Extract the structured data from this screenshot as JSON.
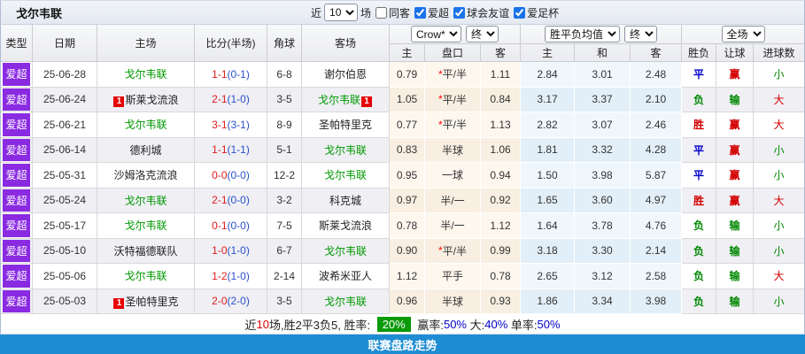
{
  "title": "戈尔韦联",
  "topbar": {
    "near_label": "近",
    "count": "10",
    "matches_label": "场",
    "filters": [
      {
        "label": "同客",
        "checked": false
      },
      {
        "label": "爱超",
        "checked": true
      },
      {
        "label": "球会友谊",
        "checked": true
      },
      {
        "label": "爱足杯",
        "checked": true
      }
    ]
  },
  "table": {
    "static_headers": [
      "类型",
      "日期",
      "主场",
      "比分(半场)",
      "角球",
      "客场"
    ],
    "groups": {
      "odds": {
        "select_company": "Crow*",
        "select_time": "终",
        "subs": [
          "主",
          "盘口",
          "客"
        ]
      },
      "avg": {
        "select_name": "胜平负均值",
        "select_time": "终",
        "subs": [
          "主",
          "和",
          "客"
        ]
      },
      "result": {
        "select_scope": "全场",
        "subs": [
          "胜负",
          "让球",
          "进球数"
        ]
      }
    },
    "rows": [
      {
        "league": "爱超",
        "date": "25-06-28",
        "home": {
          "name": "戈尔韦联",
          "self": true
        },
        "ft": "1-1",
        "ht": "(0-1)",
        "corners": "6-8",
        "away": {
          "name": "谢尔伯恩",
          "self": false
        },
        "odds_home": "0.79",
        "star": true,
        "line": "平/半",
        "odds_away": "1.11",
        "avg_home": "2.84",
        "avg_draw": "3.01",
        "avg_away": "2.48",
        "outcome": {
          "text": "平",
          "color": "blue"
        },
        "handicap": {
          "text": "赢",
          "color": "red"
        },
        "goals": {
          "text": "小",
          "color": "green"
        }
      },
      {
        "league": "爱超",
        "date": "25-06-24",
        "home": {
          "name": "斯莱戈流浪",
          "self": false,
          "badge": "1",
          "badge_side": "left"
        },
        "ft": "2-1",
        "ht": "(1-0)",
        "corners": "3-5",
        "away": {
          "name": "戈尔韦联",
          "self": true,
          "badge": "1",
          "badge_side": "right"
        },
        "odds_home": "1.05",
        "star": true,
        "line": "平/半",
        "odds_away": "0.84",
        "avg_home": "3.17",
        "avg_draw": "3.37",
        "avg_away": "2.10",
        "outcome": {
          "text": "负",
          "color": "green"
        },
        "handicap": {
          "text": "输",
          "color": "green"
        },
        "goals": {
          "text": "大",
          "color": "red"
        }
      },
      {
        "league": "爱超",
        "date": "25-06-21",
        "home": {
          "name": "戈尔韦联",
          "self": true
        },
        "ft": "3-1",
        "ht": "(3-1)",
        "corners": "8-9",
        "away": {
          "name": "圣帕特里克",
          "self": false
        },
        "odds_home": "0.77",
        "star": true,
        "line": "平/半",
        "odds_away": "1.13",
        "avg_home": "2.82",
        "avg_draw": "3.07",
        "avg_away": "2.46",
        "outcome": {
          "text": "胜",
          "color": "red"
        },
        "handicap": {
          "text": "赢",
          "color": "red"
        },
        "goals": {
          "text": "大",
          "color": "red"
        }
      },
      {
        "league": "爱超",
        "date": "25-06-14",
        "home": {
          "name": "德利城",
          "self": false
        },
        "ft": "1-1",
        "ht": "(1-1)",
        "corners": "5-1",
        "away": {
          "name": "戈尔韦联",
          "self": true
        },
        "odds_home": "0.83",
        "star": false,
        "line": "半球",
        "odds_away": "1.06",
        "avg_home": "1.81",
        "avg_draw": "3.32",
        "avg_away": "4.28",
        "outcome": {
          "text": "平",
          "color": "blue"
        },
        "handicap": {
          "text": "赢",
          "color": "red"
        },
        "goals": {
          "text": "小",
          "color": "green"
        }
      },
      {
        "league": "爱超",
        "date": "25-05-31",
        "home": {
          "name": "沙姆洛克流浪",
          "self": false
        },
        "ft": "0-0",
        "ht": "(0-0)",
        "corners": "12-2",
        "away": {
          "name": "戈尔韦联",
          "self": true
        },
        "odds_home": "0.95",
        "star": false,
        "line": "一球",
        "odds_away": "0.94",
        "avg_home": "1.50",
        "avg_draw": "3.98",
        "avg_away": "5.87",
        "outcome": {
          "text": "平",
          "color": "blue"
        },
        "handicap": {
          "text": "赢",
          "color": "red"
        },
        "goals": {
          "text": "小",
          "color": "green"
        }
      },
      {
        "league": "爱超",
        "date": "25-05-24",
        "home": {
          "name": "戈尔韦联",
          "self": true
        },
        "ft": "2-1",
        "ht": "(0-0)",
        "corners": "3-2",
        "away": {
          "name": "科克城",
          "self": false
        },
        "odds_home": "0.97",
        "star": false,
        "line": "半/一",
        "odds_away": "0.92",
        "avg_home": "1.65",
        "avg_draw": "3.60",
        "avg_away": "4.97",
        "outcome": {
          "text": "胜",
          "color": "red"
        },
        "handicap": {
          "text": "赢",
          "color": "red"
        },
        "goals": {
          "text": "大",
          "color": "red"
        }
      },
      {
        "league": "爱超",
        "date": "25-05-17",
        "home": {
          "name": "戈尔韦联",
          "self": true
        },
        "ft": "0-1",
        "ht": "(0-0)",
        "corners": "7-5",
        "away": {
          "name": "斯莱戈流浪",
          "self": false
        },
        "odds_home": "0.78",
        "star": false,
        "line": "半/一",
        "odds_away": "1.12",
        "avg_home": "1.64",
        "avg_draw": "3.78",
        "avg_away": "4.76",
        "outcome": {
          "text": "负",
          "color": "green"
        },
        "handicap": {
          "text": "输",
          "color": "green"
        },
        "goals": {
          "text": "小",
          "color": "green"
        }
      },
      {
        "league": "爱超",
        "date": "25-05-10",
        "home": {
          "name": "沃特福德联队",
          "self": false
        },
        "ft": "1-0",
        "ht": "(1-0)",
        "corners": "6-7",
        "away": {
          "name": "戈尔韦联",
          "self": true
        },
        "odds_home": "0.90",
        "star": true,
        "line": "平/半",
        "odds_away": "0.99",
        "avg_home": "3.18",
        "avg_draw": "3.30",
        "avg_away": "2.14",
        "outcome": {
          "text": "负",
          "color": "green"
        },
        "handicap": {
          "text": "输",
          "color": "green"
        },
        "goals": {
          "text": "小",
          "color": "green"
        }
      },
      {
        "league": "爱超",
        "date": "25-05-06",
        "home": {
          "name": "戈尔韦联",
          "self": true
        },
        "ft": "1-2",
        "ht": "(1-0)",
        "corners": "2-14",
        "away": {
          "name": "波希米亚人",
          "self": false
        },
        "odds_home": "1.12",
        "star": false,
        "line": "平手",
        "odds_away": "0.78",
        "avg_home": "2.65",
        "avg_draw": "3.12",
        "avg_away": "2.58",
        "outcome": {
          "text": "负",
          "color": "green"
        },
        "handicap": {
          "text": "输",
          "color": "green"
        },
        "goals": {
          "text": "大",
          "color": "red"
        }
      },
      {
        "league": "爱超",
        "date": "25-05-03",
        "home": {
          "name": "圣帕特里克",
          "self": false,
          "badge": "1",
          "badge_side": "left"
        },
        "ft": "2-0",
        "ht": "(2-0)",
        "corners": "3-5",
        "away": {
          "name": "戈尔韦联",
          "self": true
        },
        "odds_home": "0.96",
        "star": false,
        "line": "半球",
        "odds_away": "0.93",
        "avg_home": "1.86",
        "avg_draw": "3.34",
        "avg_away": "3.98",
        "outcome": {
          "text": "负",
          "color": "green"
        },
        "handicap": {
          "text": "输",
          "color": "green"
        },
        "goals": {
          "text": "小",
          "color": "green"
        }
      }
    ]
  },
  "summary": {
    "prefix": "近",
    "count": "10",
    "mid": "场,胜2平3负5, 胜率: ",
    "win_rate": "20%",
    "handicap_label": " 赢率:",
    "handicap_rate": "50%",
    "big_label": " 大:",
    "big_rate": "40%",
    "single_label": " 单率:",
    "single_rate": "50%"
  },
  "footer": {
    "label": "联赛盘路走势"
  },
  "colors": {
    "league_purple": "#8a2be2",
    "self_team_green": "#009900",
    "ft_score_red": "#e01b1b",
    "ht_score_blue": "#2b50c8",
    "win_red": "#d30000",
    "loss_green": "#008800",
    "draw_blue": "#0000cc",
    "rate_badge_green": "#0a9a0a",
    "footer_blue": "#1d8cd3",
    "rank_badge_red": "#e60000"
  }
}
